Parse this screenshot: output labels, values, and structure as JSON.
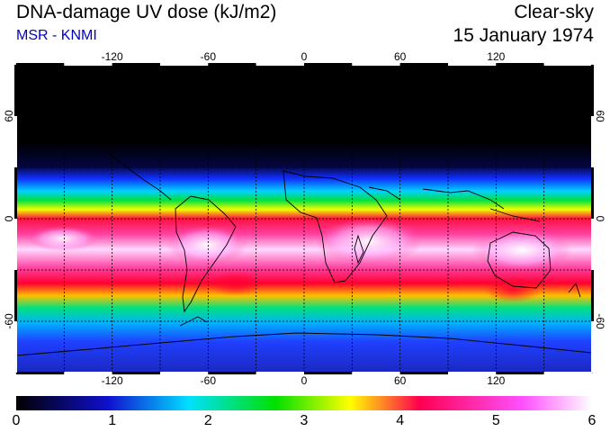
{
  "header": {
    "title": "DNA-damage UV dose (kJ/m2)",
    "source": "MSR - KNMI",
    "condition": "Clear-sky",
    "date": "15 January 1974"
  },
  "map": {
    "longitude_ticks": [
      "-120",
      "-60",
      "0",
      "60",
      "120"
    ],
    "latitude_ticks": [
      "60",
      "0",
      "-60"
    ],
    "longitude_values": [
      -120,
      -60,
      0,
      60,
      120
    ],
    "latitude_values": [
      60,
      0,
      -60
    ],
    "lon_range": [
      -180,
      180
    ],
    "lat_range": [
      -90,
      90
    ],
    "grid_step_degrees": 30,
    "grid": true
  },
  "colorbar": {
    "labels": [
      "0",
      "1",
      "2",
      "3",
      "4",
      "5",
      "6"
    ],
    "min": 0,
    "max": 6,
    "stops": [
      "#000000",
      "#1010d0",
      "#00e0ff",
      "#00e000",
      "#ffff00",
      "#ff0050",
      "#ff50ff",
      "#ffffff"
    ]
  },
  "field_colors": {
    "polar_night": "#000000",
    "low": "#2040ff",
    "mid": "#00e080",
    "high": "#ffe000",
    "very_high": "#ff0040",
    "extreme": "#ffffff"
  }
}
